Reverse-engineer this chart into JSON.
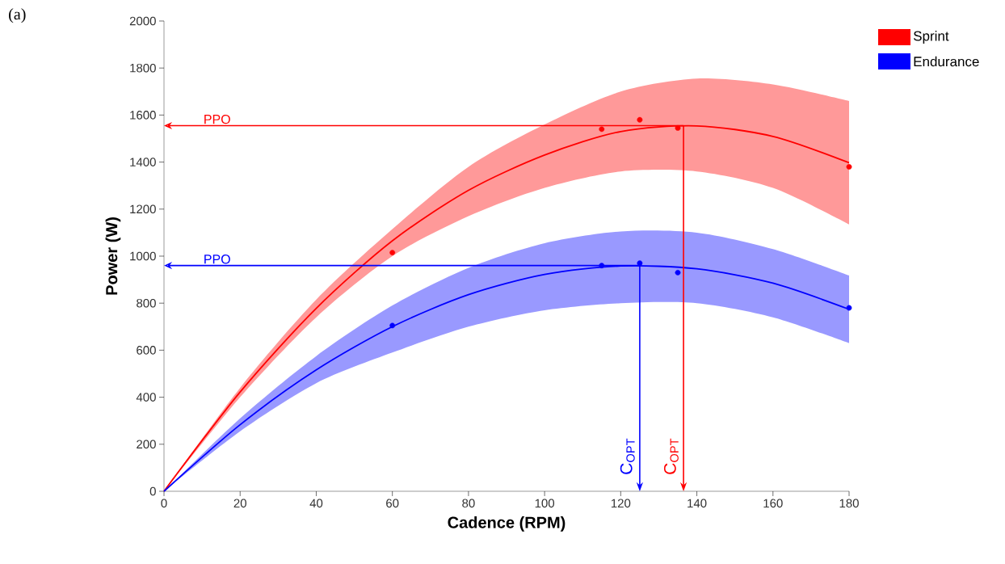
{
  "chart_data": {
    "type": "line",
    "xlabel": "Cadence (RPM)",
    "ylabel": "Power (W)",
    "xlim": [
      0,
      180
    ],
    "ylim": [
      0,
      2000
    ],
    "xticks": [
      0,
      20,
      40,
      60,
      80,
      100,
      120,
      140,
      160,
      180
    ],
    "yticks": [
      0,
      200,
      400,
      600,
      800,
      1000,
      1200,
      1400,
      1600,
      1800,
      2000
    ],
    "legend": "top right",
    "series": [
      {
        "name": "Sprint",
        "color": "#ff0000",
        "x": [
          0,
          20,
          40,
          60,
          80,
          100,
          120,
          140,
          160,
          180
        ],
        "values": [
          0,
          422,
          778,
          1065,
          1280,
          1430,
          1530,
          1554,
          1509,
          1397
        ],
        "lower": [
          0,
          400,
          740,
          1000,
          1170,
          1290,
          1360,
          1360,
          1290,
          1135
        ],
        "upper": [
          0,
          440,
          815,
          1115,
          1380,
          1560,
          1700,
          1755,
          1730,
          1660
        ]
      },
      {
        "type": "scatter",
        "marker": "circle",
        "color": "#ff0000",
        "x": [
          60,
          115,
          125,
          135,
          180
        ],
        "values": [
          1015,
          1540,
          1580,
          1545,
          1380
        ]
      },
      {
        "name": "Endurance",
        "color": "#0000ff",
        "x": [
          0,
          20,
          40,
          60,
          80,
          100,
          120,
          140,
          160,
          180
        ],
        "values": [
          0,
          283,
          516,
          700,
          836,
          922,
          958,
          946,
          885,
          774
        ],
        "lower": [
          0,
          255,
          460,
          590,
          700,
          770,
          800,
          800,
          740,
          630
        ],
        "upper": [
          0,
          310,
          575,
          790,
          950,
          1055,
          1105,
          1100,
          1030,
          918
        ]
      },
      {
        "type": "scatter",
        "marker": "circle",
        "color": "#0000ff",
        "x": [
          60,
          115,
          125,
          135,
          180
        ],
        "values": [
          705,
          960,
          970,
          930,
          780
        ]
      }
    ],
    "ref_lines": [
      {
        "axis": "y",
        "value": 1555,
        "label": "PPO",
        "color": "#ff0000"
      },
      {
        "axis": "y",
        "value": 960,
        "label": "PPO",
        "color": "#0000ff"
      },
      {
        "axis": "x",
        "value": 136.5,
        "label": "C$_{OPT}$",
        "color": "#ff0000"
      },
      {
        "axis": "x",
        "value": 125,
        "label": "C$_{OPT}$",
        "color": "#0000ff"
      }
    ],
    "annotations": [
      "(a)"
    ]
  }
}
